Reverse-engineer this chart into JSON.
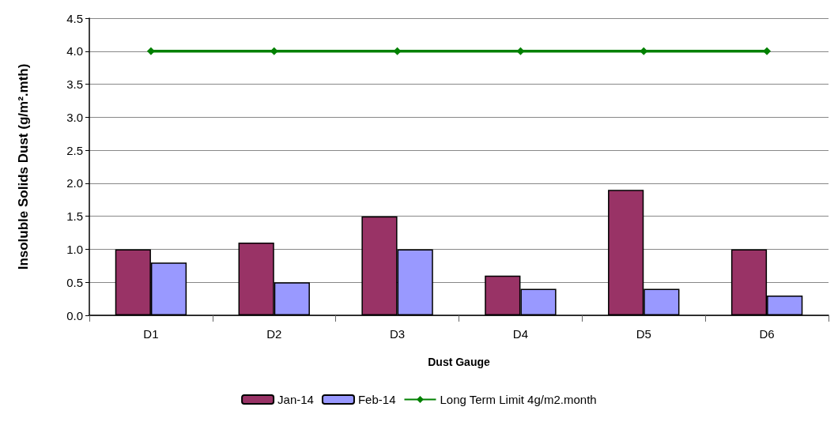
{
  "chart_data": {
    "type": "bar",
    "xlabel": "Dust Gauge",
    "ylabel": "Insoluble Solids Dust (g/m².mth)",
    "categories": [
      "D1",
      "D2",
      "D3",
      "D4",
      "D5",
      "D6"
    ],
    "series": [
      {
        "name": "Jan-14",
        "color": "#993366",
        "values": [
          1.0,
          1.1,
          1.5,
          0.6,
          1.9,
          1.0
        ]
      },
      {
        "name": "Feb-14",
        "color": "#9999ff",
        "values": [
          0.8,
          0.5,
          1.0,
          0.4,
          0.4,
          0.3
        ]
      },
      {
        "name": "Long Term Limit 4g/m2.month",
        "type": "line",
        "color": "#008000",
        "marker": "diamond",
        "values": [
          4.0,
          4.0,
          4.0,
          4.0,
          4.0,
          4.0
        ]
      }
    ],
    "ylim": [
      0,
      4.5
    ],
    "yticks": [
      {
        "value": 0,
        "label": "0.0"
      },
      0.5,
      {
        "value": 1,
        "label": "1.0"
      },
      1.5,
      {
        "value": 2,
        "label": "2.0"
      },
      2.5,
      {
        "value": 3,
        "label": "3.0"
      },
      3.5,
      {
        "value": 4,
        "label": "4.0"
      },
      4.5
    ],
    "grid": "y",
    "legend": "bottom"
  }
}
